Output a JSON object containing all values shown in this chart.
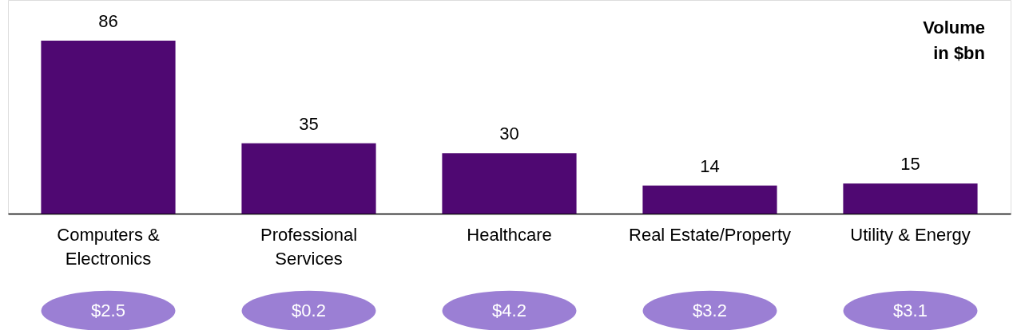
{
  "chart_data": {
    "type": "bar",
    "categories": [
      "Computers & Electronics",
      "Professional Services",
      "Healthcare",
      "Real Estate/Property",
      "Utility & Energy"
    ],
    "values": [
      86,
      35,
      30,
      14,
      15
    ],
    "color": "#4f0872",
    "data_labels": true,
    "annotations": [
      "Volume\nin $bn",
      "$2.5",
      "$0.2",
      "$4.2",
      "$3.2",
      "$3.1"
    ]
  }
}
